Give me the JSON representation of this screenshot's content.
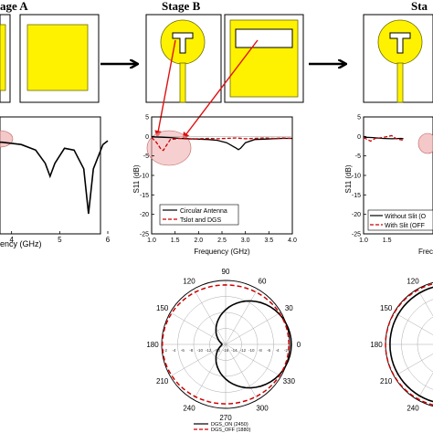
{
  "stages": [
    {
      "title": "age A"
    },
    {
      "title": "Stage B"
    },
    {
      "title": "Sta"
    }
  ],
  "colors": {
    "patch_fill": "#fff200",
    "patch_stroke": "#6b6b00",
    "arrow_red": "#e01010",
    "highlight": "#f0b0b0",
    "series_black": "#000000",
    "series_red": "#cc0000"
  },
  "plot_left": {
    "xtick_labels": [
      "4",
      "5",
      "6"
    ],
    "xlabel_fragment": "ency (GHz)"
  },
  "plot_mid": {
    "ylabel": "S11 (dB)",
    "xlabel": "Frequency (GHz)",
    "xtick_labels": [
      "1.0",
      "1.5",
      "2.0",
      "2.5",
      "3.0",
      "3.5",
      "4.0"
    ],
    "ytick_labels": [
      "5",
      "0",
      "-5",
      "-10",
      "-15",
      "-20",
      "-25"
    ],
    "legend": [
      "Circular Antenna",
      "Tslot and DGS"
    ]
  },
  "plot_right": {
    "ylabel": "S11 (dB)",
    "xlabel_fragment": "Frec",
    "xtick_labels": [
      "1.0",
      "1.5"
    ],
    "ytick_labels": [
      "5",
      "0",
      "-5",
      "-10",
      "-15",
      "-20",
      "-25"
    ],
    "legend": [
      "Without Slit (O",
      "With Slit (OFF"
    ]
  },
  "polar_mid": {
    "angle_labels": [
      "90",
      "60",
      "30",
      "0",
      "330",
      "300",
      "270",
      "240",
      "210",
      "180",
      "150",
      "120"
    ],
    "radial_labels": [
      "-2",
      "-4",
      "-6",
      "-8",
      "-10",
      "-12",
      "-14",
      "-16",
      "-14",
      "-12",
      "-10",
      "-8",
      "-6",
      "-4",
      "-2"
    ],
    "legend": [
      "DGS_ON (2450)",
      "DGS_OFF (1880)"
    ]
  },
  "polar_right": {
    "angle_labels": [
      "120",
      "150",
      "180",
      "210",
      "240"
    ]
  },
  "chart_data": [
    {
      "type": "line",
      "ylabel": "S11 (dB)",
      "xlabel": "Frequency (GHz)",
      "xlim": [
        1.0,
        4.0
      ],
      "ylim": [
        -25,
        5
      ],
      "series": [
        {
          "name": "Circular Antenna",
          "x": [
            1.0,
            1.2,
            1.4,
            1.6,
            1.8,
            2.0,
            2.2,
            2.4,
            2.6,
            2.8,
            2.85,
            2.9,
            3.0,
            3.2,
            3.4,
            3.6,
            3.8,
            4.0
          ],
          "y": [
            -0.1,
            -0.2,
            -0.3,
            -0.5,
            -0.6,
            -0.7,
            -0.8,
            -1.0,
            -1.6,
            -3.0,
            -3.4,
            -3.0,
            -1.6,
            -0.8,
            -0.7,
            -0.6,
            -0.5,
            -0.5
          ]
        },
        {
          "name": "Tslot and DGS",
          "x": [
            1.0,
            1.1,
            1.2,
            1.25,
            1.3,
            1.4,
            1.6,
            1.8,
            2.0,
            2.2,
            2.4,
            2.6,
            2.8,
            3.0,
            3.2,
            3.4,
            3.6,
            3.8,
            4.0
          ],
          "y": [
            -0.3,
            -1.5,
            -3.3,
            -3.6,
            -2.6,
            -0.8,
            -0.5,
            -0.7,
            -0.6,
            -0.5,
            -0.6,
            -0.5,
            -0.4,
            -0.6,
            -0.5,
            -0.4,
            -0.5,
            -0.4,
            -0.5
          ]
        }
      ]
    },
    {
      "type": "line",
      "xlim": [
        3.0,
        6.0
      ],
      "series": [
        {
          "x": [
            3.0,
            3.4,
            3.8,
            4.2,
            4.5,
            4.7,
            4.8,
            4.9,
            5.1,
            5.3,
            5.5,
            5.6,
            5.7,
            5.9,
            6.0
          ],
          "y": [
            -0.5,
            -0.8,
            -0.9,
            -1.5,
            -3.0,
            -6.5,
            -10.0,
            -6.5,
            -2.5,
            -3.0,
            -8.0,
            -20.0,
            -8.0,
            -1.5,
            -0.5
          ]
        }
      ]
    }
  ]
}
